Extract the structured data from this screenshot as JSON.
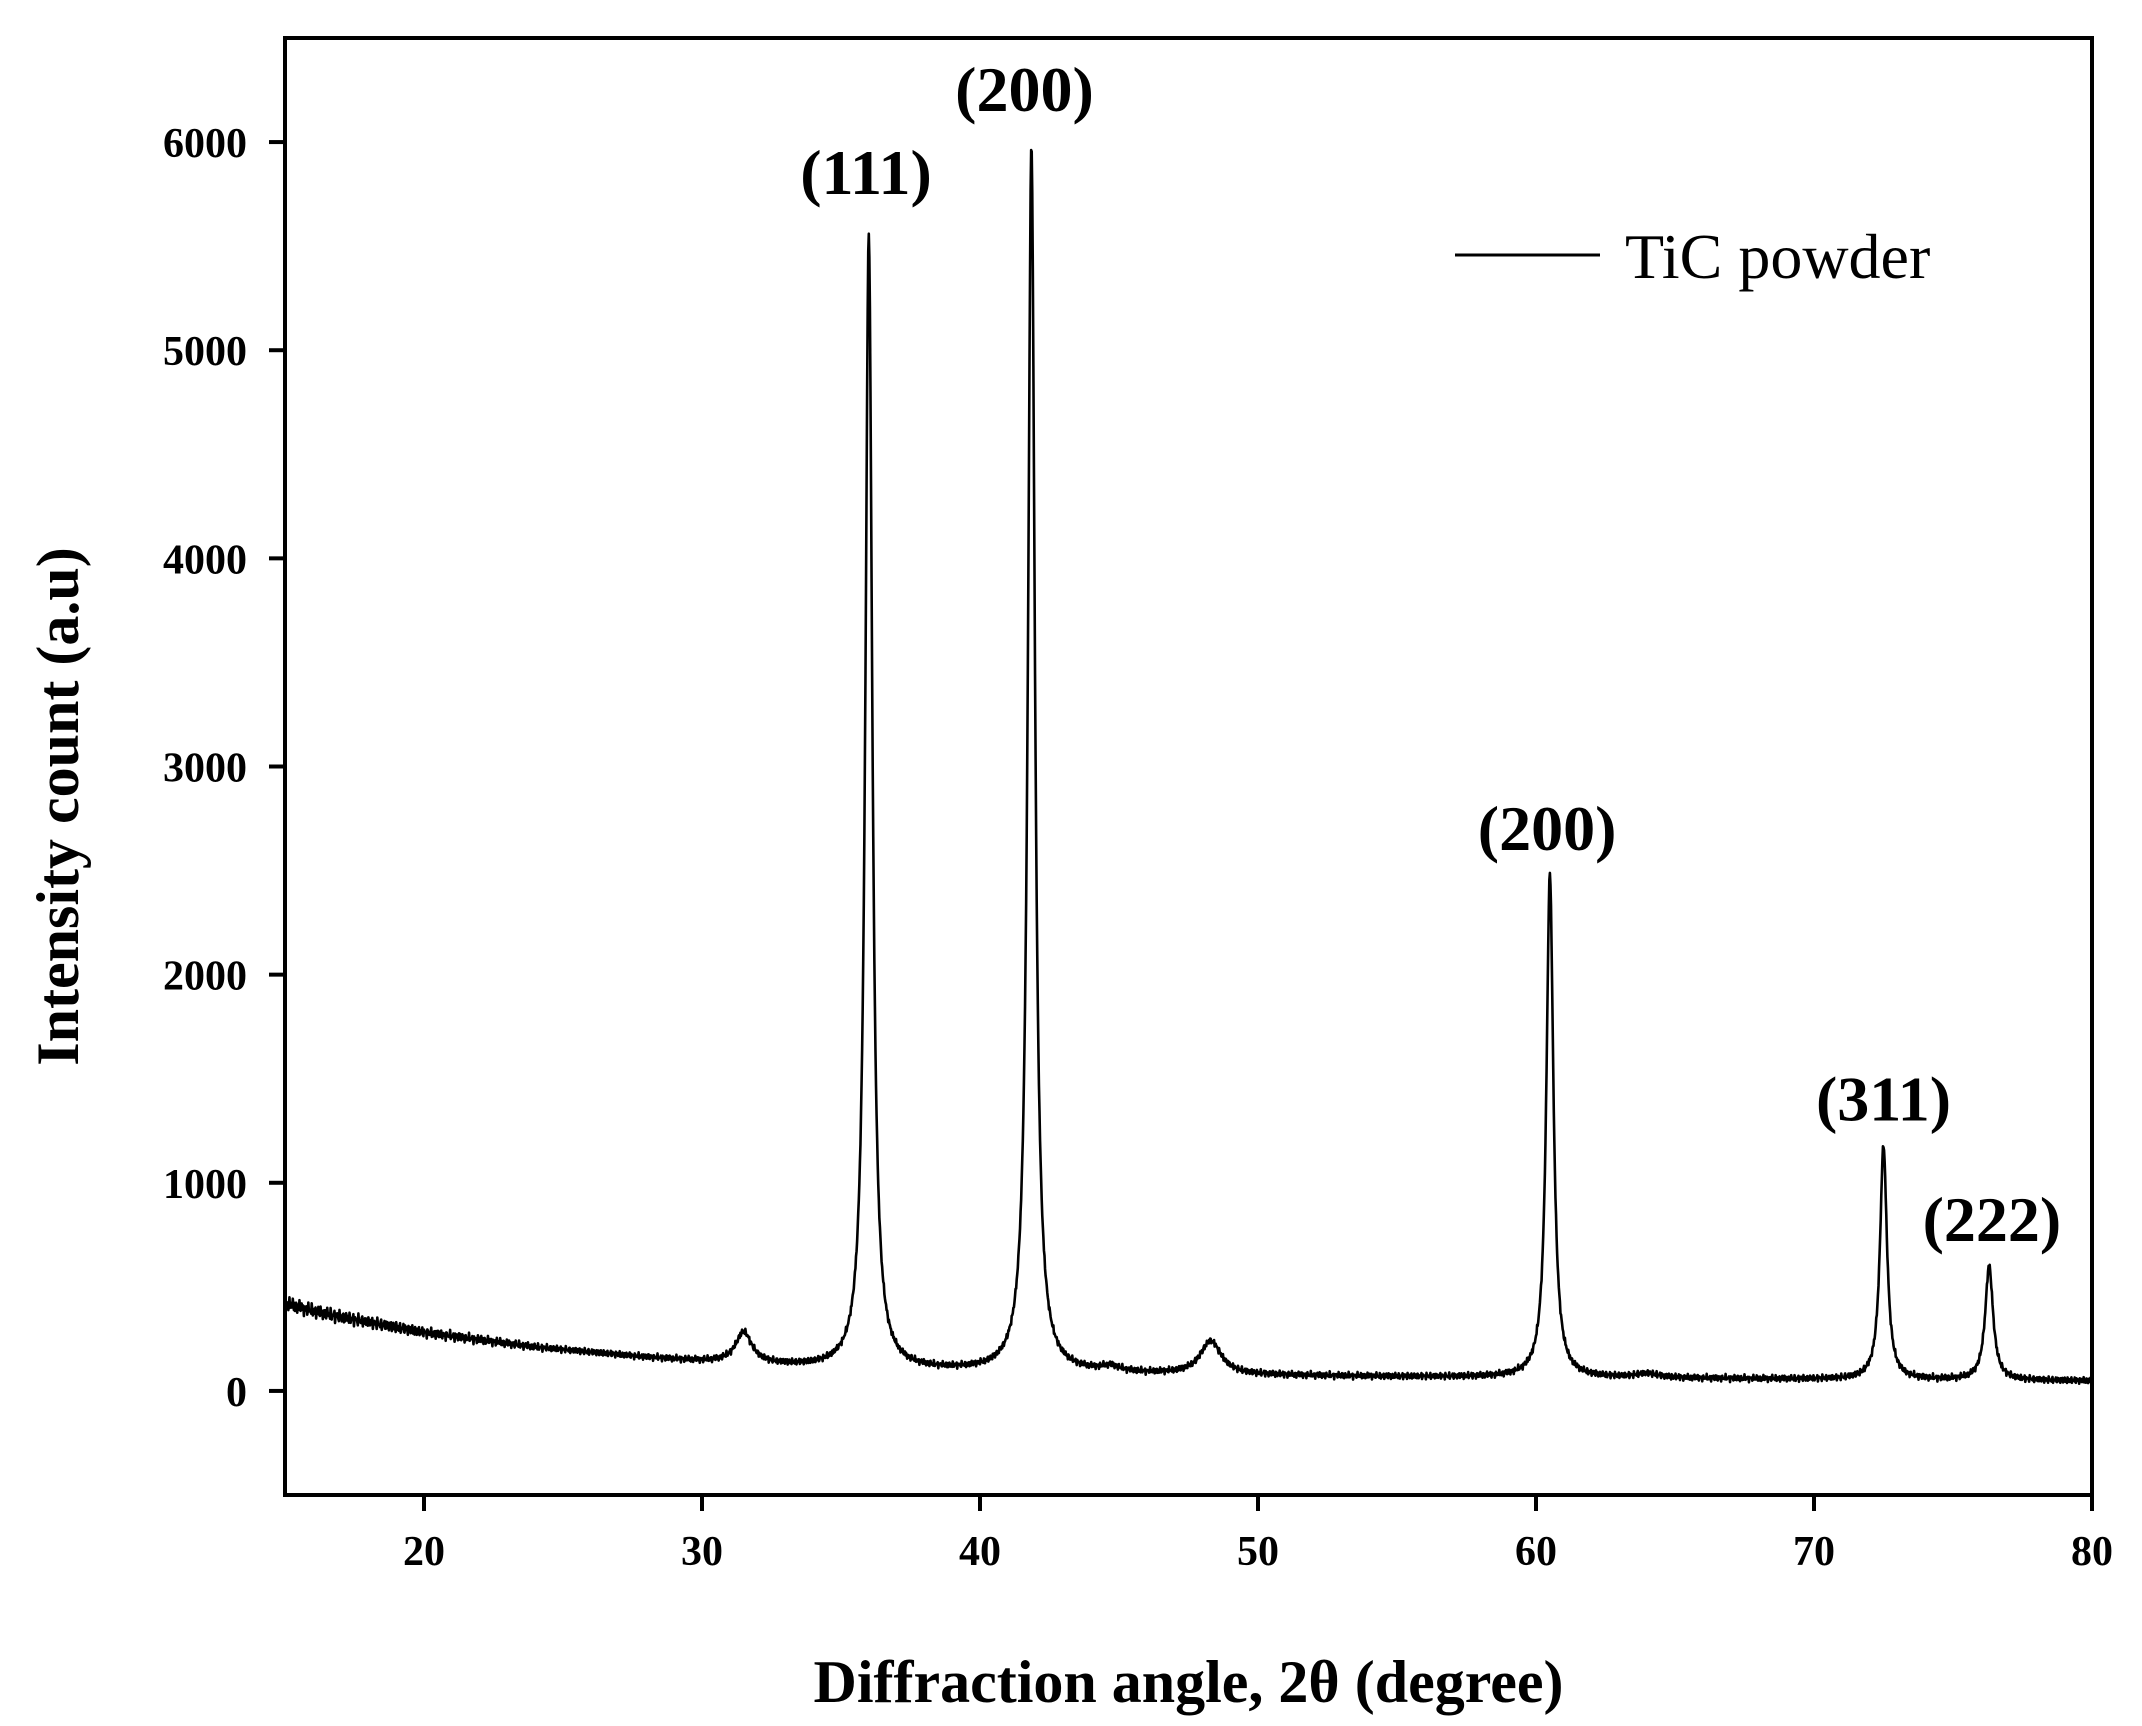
{
  "chart_data": {
    "type": "line",
    "title": "",
    "xlabel": "Diffraction angle, 2θ (degree)",
    "ylabel": "Intensity count (a.u)",
    "xlim": [
      15,
      80
    ],
    "ylim": [
      -500,
      6500
    ],
    "xticks": [
      20,
      30,
      40,
      50,
      60,
      70,
      80
    ],
    "yticks": [
      0,
      1000,
      2000,
      3000,
      4000,
      5000,
      6000
    ],
    "grid": false,
    "legend": {
      "position": "top-right",
      "entries": [
        "TiC powder"
      ]
    },
    "series": [
      {
        "name": "TiC powder",
        "color": "#000000",
        "background_points": [
          [
            15,
            420
          ],
          [
            16,
            385
          ],
          [
            17,
            355
          ],
          [
            18,
            330
          ],
          [
            19,
            305
          ],
          [
            20,
            280
          ],
          [
            22,
            245
          ],
          [
            24,
            210
          ],
          [
            26,
            185
          ],
          [
            28,
            160
          ],
          [
            30,
            140
          ],
          [
            32,
            125
          ],
          [
            34,
            112
          ],
          [
            36,
            105
          ],
          [
            38,
            97
          ],
          [
            40,
            92
          ],
          [
            42,
            88
          ],
          [
            44,
            84
          ],
          [
            46,
            80
          ],
          [
            48,
            77
          ],
          [
            50,
            74
          ],
          [
            55,
            68
          ],
          [
            60,
            64
          ],
          [
            65,
            60
          ],
          [
            70,
            56
          ],
          [
            75,
            52
          ],
          [
            80,
            48
          ]
        ],
        "peaks": [
          {
            "x": 31.5,
            "height": 150,
            "width": 0.35
          },
          {
            "x": 36.0,
            "height": 5450,
            "width": 0.15
          },
          {
            "x": 41.85,
            "height": 5890,
            "width": 0.15
          },
          {
            "x": 44.7,
            "height": 25,
            "width": 0.4
          },
          {
            "x": 48.3,
            "height": 160,
            "width": 0.45
          },
          {
            "x": 60.5,
            "height": 2420,
            "width": 0.15
          },
          {
            "x": 64.0,
            "height": 20,
            "width": 0.5
          },
          {
            "x": 72.5,
            "height": 1125,
            "width": 0.15
          },
          {
            "x": 76.3,
            "height": 550,
            "width": 0.17
          }
        ]
      }
    ],
    "annotations": [
      {
        "text": "(111)",
        "x": 35.9,
        "y": 5750
      },
      {
        "text": "(200)",
        "x": 41.6,
        "y": 6150
      },
      {
        "text": "(200)",
        "x": 60.4,
        "y": 2600
      },
      {
        "text": "(311)",
        "x": 72.5,
        "y": 1300
      },
      {
        "text": "(222)",
        "x": 76.4,
        "y": 720
      }
    ]
  }
}
